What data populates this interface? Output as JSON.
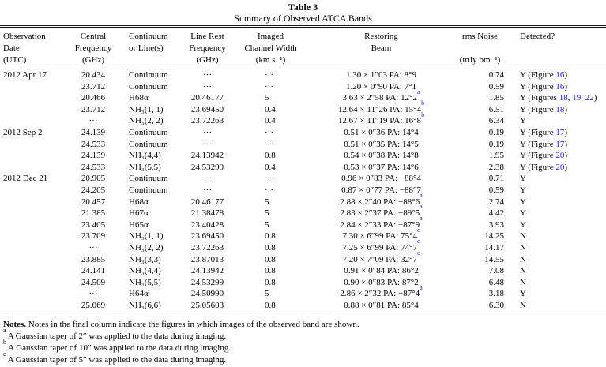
{
  "colors": {
    "link": "#2222cc",
    "text": "#000000",
    "rule": "#1a1a1a",
    "background": "#ffffff"
  },
  "table": {
    "title": "Table 3",
    "subtitle": "Summary of Observed ATCA Bands",
    "header": {
      "keys": [
        "obs-date",
        "central-frequency",
        "continuum-or-lines",
        "line-rest-frequency",
        "imaged-channel-width",
        "restoring-beam",
        "rms-noise",
        "detected"
      ],
      "columns": [
        [
          "Observation",
          "Date",
          "(UTC)"
        ],
        [
          "Central",
          "Frequency",
          "(GHz)"
        ],
        [
          "Continuum",
          "or Line(s)",
          ""
        ],
        [
          "Line Rest",
          "Frequency",
          "(GHz)"
        ],
        [
          "Imaged",
          "Channel Width",
          "(km s⁻¹)"
        ],
        [
          "Restoring",
          "Beam",
          ""
        ],
        [
          "rms Noise",
          "",
          "(mJy bm⁻¹)"
        ],
        [
          "Detected?",
          "",
          ""
        ]
      ]
    },
    "rows": [
      {
        "date": "2012 Apr 17",
        "freq": "20.434",
        "line": "Continuum",
        "rest": "···",
        "width": "···",
        "beam": "1.30 × 1″03 PA: 8°9",
        "beam_sup": "",
        "rms": "0.74",
        "det_pre": "Y (Figure ",
        "det_figs": [
          "16"
        ],
        "det_post": ")"
      },
      {
        "date": "",
        "freq": "23.712",
        "line": "Continuum",
        "rest": "···",
        "width": "···",
        "beam": "1.20 × 0″90 PA: 7°1",
        "beam_sup": "",
        "rms": "0.59",
        "det_pre": "Y (Figure ",
        "det_figs": [
          "16"
        ],
        "det_post": ")"
      },
      {
        "date": "",
        "freq": "20.466",
        "line": "H68α",
        "rest": "20.46177",
        "width": "5",
        "beam": "3.63 × 2″58 PA: 12°2",
        "beam_sup": "a",
        "rms": "1.85",
        "det_pre": "Y (Figures ",
        "det_figs": [
          "18",
          "19",
          "22"
        ],
        "det_post": ")"
      },
      {
        "date": "",
        "freq": "23.712",
        "line": "NH₃(1, 1)",
        "rest": "23.69450",
        "width": "0.4",
        "beam": "12.64 × 11″26 PA: 15°4",
        "beam_sup": "b",
        "rms": "6.51",
        "det_pre": "Y (Figure ",
        "det_figs": [
          "18"
        ],
        "det_post": ")"
      },
      {
        "date": "",
        "freq": "···",
        "line": "NH₃(2, 2)",
        "rest": "23.72263",
        "width": "0.4",
        "beam": "12.67 × 11″19 PA: 16°8",
        "beam_sup": "b",
        "rms": "6.34",
        "det_pre": "Y",
        "det_figs": [],
        "det_post": ""
      },
      {
        "date": "2012 Sep 2",
        "freq": "24.139",
        "line": "Continuum",
        "rest": "···",
        "width": "···",
        "beam": "0.51 × 0″36 PA: 14°4",
        "beam_sup": "",
        "rms": "0.19",
        "det_pre": "Y (Figure ",
        "det_figs": [
          "17"
        ],
        "det_post": ")"
      },
      {
        "date": "",
        "freq": "24.533",
        "line": "Continuum",
        "rest": "···",
        "width": "···",
        "beam": "0.51 × 0″35 PA: 14°5",
        "beam_sup": "",
        "rms": "0.19",
        "det_pre": "Y (Figure ",
        "det_figs": [
          "17"
        ],
        "det_post": ")"
      },
      {
        "date": "",
        "freq": "24.139",
        "line": "NH₃(4,4)",
        "rest": "24.13942",
        "width": "0.8",
        "beam": "0.54 × 0″38 PA: 14°8",
        "beam_sup": "",
        "rms": "1.95",
        "det_pre": "Y (Figure ",
        "det_figs": [
          "20"
        ],
        "det_post": ")"
      },
      {
        "date": "",
        "freq": "24.533",
        "line": "NH₃(5,5)",
        "rest": "24.53299",
        "width": "0.4",
        "beam": "0.53 × 0″37 PA: 14°6",
        "beam_sup": "",
        "rms": "2.38",
        "det_pre": "Y (Figure ",
        "det_figs": [
          "20"
        ],
        "det_post": ")"
      },
      {
        "date": "2012 Dec 21",
        "freq": "20.905",
        "line": "Continuum",
        "rest": "···",
        "width": "···",
        "beam": "0.96 × 0″83 PA: −88°4",
        "beam_sup": "",
        "rms": "0.71",
        "det_pre": "Y",
        "det_figs": [],
        "det_post": ""
      },
      {
        "date": "",
        "freq": "24.205",
        "line": "Continuum",
        "rest": "···",
        "width": "···",
        "beam": "0.87 × 0″77 PA: −88°7",
        "beam_sup": "",
        "rms": "0.59",
        "det_pre": "Y",
        "det_figs": [],
        "det_post": ""
      },
      {
        "date": "",
        "freq": "20.457",
        "line": "H68α",
        "rest": "20.46177",
        "width": "5",
        "beam": "2.88 × 2″40 PA: −88°6",
        "beam_sup": "a",
        "rms": "2.74",
        "det_pre": "Y",
        "det_figs": [],
        "det_post": ""
      },
      {
        "date": "",
        "freq": "21.385",
        "line": "H67α",
        "rest": "21.38478",
        "width": "5",
        "beam": "2.83 × 2″37 PA: −89°5",
        "beam_sup": "a",
        "rms": "4.42",
        "det_pre": "Y",
        "det_figs": [],
        "det_post": ""
      },
      {
        "date": "",
        "freq": "23.405",
        "line": "H65α",
        "rest": "23.40428",
        "width": "5",
        "beam": "2.84 × 2″33 PA: −87°9",
        "beam_sup": "a",
        "rms": "3.93",
        "det_pre": "Y",
        "det_figs": [],
        "det_post": ""
      },
      {
        "date": "",
        "freq": "23.709",
        "line": "NH₃(1, 1)",
        "rest": "23.69450",
        "width": "0.8",
        "beam": "7.30 × 6″99 PA: 75°4",
        "beam_sup": "c",
        "rms": "14.25",
        "det_pre": "N",
        "det_figs": [],
        "det_post": ""
      },
      {
        "date": "",
        "freq": "···",
        "line": "NH₃(2, 2)",
        "rest": "23.72263",
        "width": "0.8",
        "beam": "7.25 × 6″99 PA: 74°7",
        "beam_sup": "c",
        "rms": "14.17",
        "det_pre": "N",
        "det_figs": [],
        "det_post": ""
      },
      {
        "date": "",
        "freq": "23.885",
        "line": "NH₃(3,3)",
        "rest": "23.87013",
        "width": "0.8",
        "beam": "7.20 × 7″09 PA: 32°7",
        "beam_sup": "c",
        "rms": "14.55",
        "det_pre": "N",
        "det_figs": [],
        "det_post": ""
      },
      {
        "date": "",
        "freq": "24.141",
        "line": "NH₃(4,4)",
        "rest": "24.13942",
        "width": "0.8",
        "beam": "0.91 × 0″84 PA: 86°2",
        "beam_sup": "",
        "rms": "7.08",
        "det_pre": "N",
        "det_figs": [],
        "det_post": ""
      },
      {
        "date": "",
        "freq": "24.509",
        "line": "NH₃(5,5)",
        "rest": "24.53299",
        "width": "0.8",
        "beam": "0.90 × 0″83 PA: 87°2",
        "beam_sup": "",
        "rms": "6.48",
        "det_pre": "N",
        "det_figs": [],
        "det_post": ""
      },
      {
        "date": "",
        "freq": "···",
        "line": "H64α",
        "rest": "24.50990",
        "width": "5",
        "beam": "2.86 × 2″32 PA: −87°4",
        "beam_sup": "a",
        "rms": "3.18",
        "det_pre": "Y",
        "det_figs": [],
        "det_post": ""
      },
      {
        "date": "",
        "freq": "25.069",
        "line": "NH₃(6,6)",
        "rest": "25.05603",
        "width": "0.8",
        "beam": "0.88 × 0″81 PA: 85°4",
        "beam_sup": "",
        "rms": "6.30",
        "det_pre": "N",
        "det_figs": [],
        "det_post": ""
      }
    ]
  },
  "notes": {
    "general_label": "Notes.",
    "general": " Notes in the final column indicate the figures in which images of the observed band are shown.",
    "footnotes": [
      {
        "sup": "a",
        "text": " A Gaussian taper of 2″ was applied to the data during imaging."
      },
      {
        "sup": "b",
        "text": " A Gaussian taper of 10″ was applied to the data during imaging."
      },
      {
        "sup": "c",
        "text": " A Gaussian taper of 5″ was applied to the data during imaging."
      }
    ]
  }
}
